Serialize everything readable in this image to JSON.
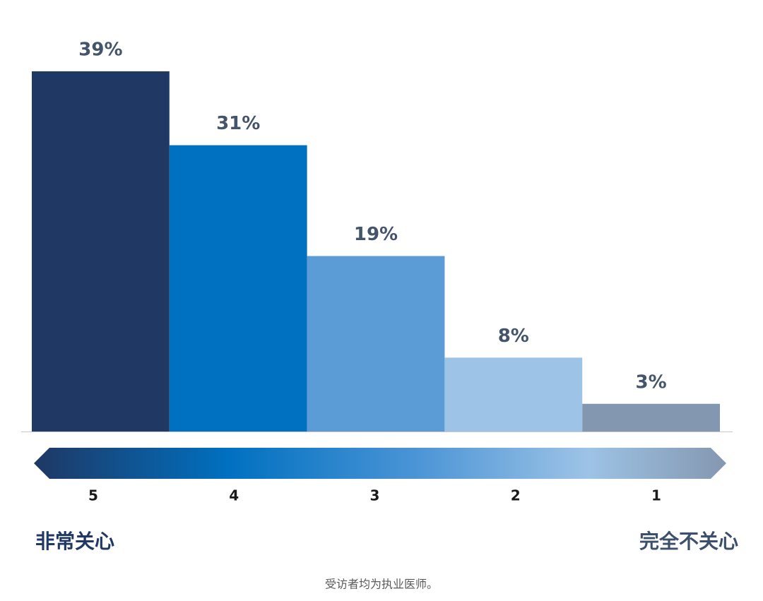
{
  "chart_data": {
    "type": "bar",
    "categories": [
      "5",
      "4",
      "3",
      "2",
      "1"
    ],
    "values": [
      39,
      31,
      19,
      8,
      3
    ],
    "value_labels": [
      "39%",
      "31%",
      "19%",
      "8%",
      "3%"
    ],
    "colors": [
      "#203864",
      "#0070c0",
      "#5b9bd6",
      "#9dc3e6",
      "#8497b0"
    ],
    "left_annotation": "非常关心",
    "right_annotation": "完全不关心",
    "note": "受访者均为执业医师。"
  }
}
